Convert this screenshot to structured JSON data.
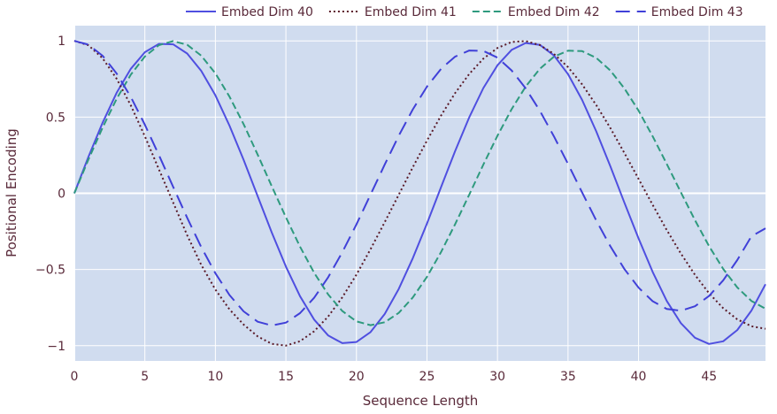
{
  "chart_data": {
    "type": "line",
    "xlabel": "Sequence Length",
    "ylabel": "Positional Encoding",
    "xlim": [
      0,
      49
    ],
    "ylim": [
      -1.1,
      1.1
    ],
    "x_ticks": [
      0,
      5,
      10,
      15,
      20,
      25,
      30,
      35,
      40,
      45
    ],
    "x_tick_labels": [
      "0",
      "5",
      "10",
      "15",
      "20",
      "25",
      "30",
      "35",
      "40",
      "45"
    ],
    "y_ticks": [
      1,
      0.5,
      0,
      -0.5,
      -1
    ],
    "y_tick_labels": [
      "1",
      "0.5",
      "0",
      "−0.5",
      "−1"
    ],
    "grid": true,
    "legend_position": "top-right, horizontal, above plot",
    "x": [
      0,
      1,
      2,
      3,
      4,
      5,
      6,
      7,
      8,
      9,
      10,
      11,
      12,
      13,
      14,
      15,
      16,
      17,
      18,
      19,
      20,
      21,
      22,
      23,
      24,
      25,
      26,
      27,
      28,
      29,
      30,
      31,
      32,
      33,
      34,
      35,
      36,
      37,
      38,
      39,
      40,
      41,
      42,
      43,
      44,
      45,
      46,
      47,
      48,
      49
    ],
    "series": [
      {
        "name": "Embed Dim 40",
        "style": "solid",
        "color": "#4f4fe0",
        "values": [
          0,
          0.2385,
          0.4628,
          0.6593,
          0.8167,
          0.9258,
          0.9804,
          0.9775,
          0.9174,
          0.8035,
          0.6426,
          0.4439,
          0.2188,
          -0.0199,
          -0.2578,
          -0.481,
          -0.6749,
          -0.8287,
          -0.9336,
          -0.9836,
          -0.9759,
          -0.911,
          -0.7926,
          -0.6276,
          -0.4255,
          -0.1979,
          0.0409,
          0.2774,
          0.499,
          0.6909,
          0.8407,
          0.9411,
          0.9863,
          0.9739,
          0.9042,
          0.7813,
          0.6125,
          0.4069,
          0.177,
          -0.0619,
          -0.2967,
          -0.5163,
          -0.7066,
          -0.8523,
          -0.9481,
          -0.9885,
          -0.9714,
          -0.8972,
          -0.7697,
          -0.5969
        ]
      },
      {
        "name": "Embed Dim 41",
        "style": "dotted",
        "color": "#5a1a28",
        "values": [
          1,
          0.9711,
          0.8864,
          0.7519,
          0.5771,
          0.3741,
          0.1568,
          -0.0598,
          -0.2749,
          -0.4695,
          -0.6322,
          -0.7614,
          -0.8617,
          -0.9394,
          -0.9877,
          -0.9993,
          -0.9705,
          -0.9053,
          -0.808,
          -0.6826,
          -0.5333,
          -0.3667,
          -0.1899,
          -0.0093,
          0.171,
          0.3461,
          0.51,
          0.6576,
          0.7836,
          0.8832,
          0.9537,
          0.9928,
          0.9991,
          0.9728,
          0.9148,
          0.8277,
          0.7145,
          0.5795,
          0.4276,
          0.264,
          0.0942,
          -0.076,
          -0.2409,
          -0.3954,
          -0.535,
          -0.6558,
          -0.7541,
          -0.8271,
          -0.8726,
          -0.889
        ]
      },
      {
        "name": "Embed Dim 42",
        "style": "dashed",
        "color": "#2e9a7e",
        "values": [
          0,
          0.2209,
          0.431,
          0.62,
          0.7783,
          0.8977,
          0.9722,
          0.9982,
          0.9746,
          0.903,
          0.7874,
          0.6346,
          0.4531,
          0.2531,
          0.0457,
          -0.1579,
          -0.3502,
          -0.5219,
          -0.6648,
          -0.7727,
          -0.8406,
          -0.8655,
          -0.8464,
          -0.7846,
          -0.6835,
          -0.5482,
          -0.3853,
          -0.2024,
          -0.008,
          0.1888,
          0.3784,
          0.5516,
          0.7,
          0.8167,
          0.8965,
          0.9358,
          0.933,
          0.8888,
          0.8057,
          0.6881,
          0.5419,
          0.3741,
          0.1927,
          0.0062,
          -0.1763,
          -0.3465,
          -0.4961,
          -0.6179,
          -0.7063,
          -0.7574
        ]
      },
      {
        "name": "Embed Dim 43",
        "style": "longdash",
        "color": "#4040d8",
        "values": [
          1,
          0.9753,
          0.9024,
          0.7857,
          0.632,
          0.45,
          0.25,
          0.0427,
          -0.1609,
          -0.353,
          -0.5245,
          -0.6673,
          -0.7751,
          -0.8429,
          -0.8676,
          -0.8484,
          -0.7866,
          -0.6855,
          -0.55,
          -0.3868,
          -0.2036,
          -0.0089,
          0.1881,
          0.3777,
          0.551,
          0.6998,
          0.8169,
          0.897,
          0.9366,
          0.934,
          0.8897,
          0.8063,
          0.6883,
          0.5417,
          0.3736,
          0.1919,
          0.0052,
          -0.1776,
          -0.3479,
          -0.4976,
          -0.6196,
          -0.7081,
          -0.7592,
          -0.7705,
          -0.7415,
          -0.6737,
          -0.5709,
          -0.4382,
          -0.2822,
          -0.23
        ]
      }
    ]
  }
}
